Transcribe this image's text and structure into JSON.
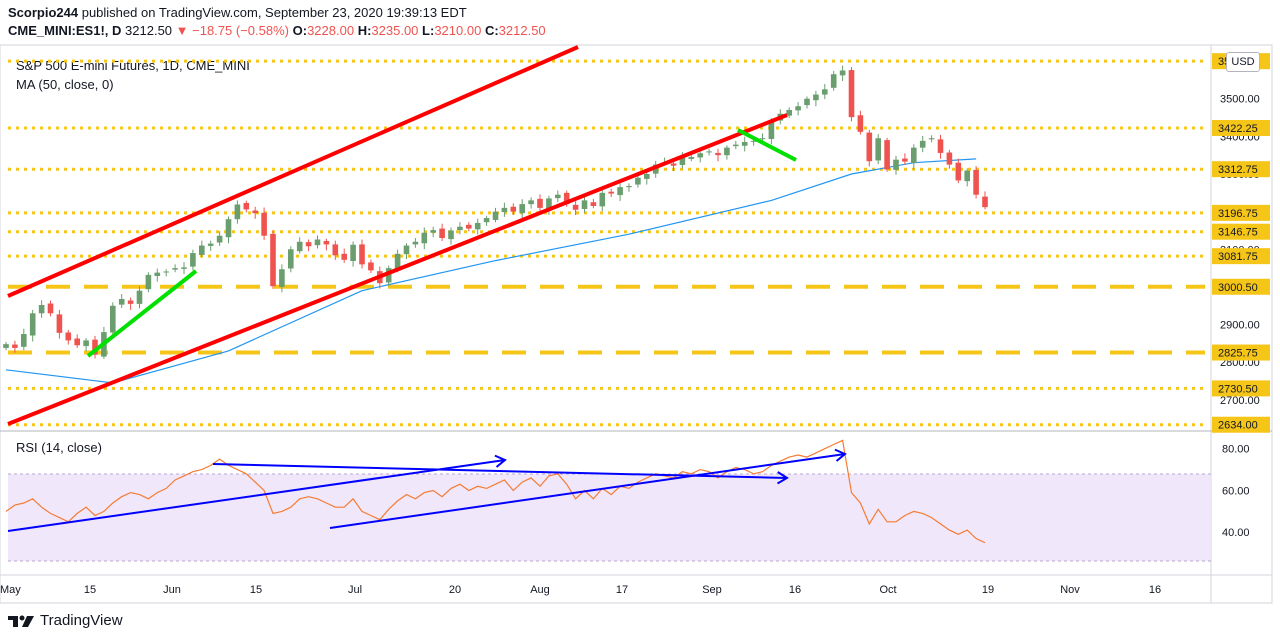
{
  "header": {
    "author": "Scorpio244",
    "published_text": "published on TradingView.com, September 23, 2020 19:39:13 EDT",
    "symbol": "CME_MINI:ES1!, D",
    "last": "3212.50",
    "change": "▼ −18.75 (−0.58%)",
    "o_label": "O:",
    "o_val": "3228.00",
    "h_label": "H:",
    "h_val": "3235.00",
    "l_label": "L:",
    "l_val": "3210.00",
    "c_label": "C:",
    "c_val": "3212.50"
  },
  "currency": "USD",
  "footer": {
    "brand": "TradingView"
  },
  "colors": {
    "up": "#4caf50",
    "up_body": "#6a9e6e",
    "down": "#ef5350",
    "ma": "#2196f3",
    "rsi": "#f57c33",
    "channel": "#ff0000",
    "level": "#f5c518",
    "trend_green": "#00e000",
    "trend_blue": "#0000ff"
  },
  "chart_data": [
    {
      "type": "candlestick",
      "title": "S&P 500 E-mini Futures, 1D, CME_MINI",
      "indicator_label": "MA (50, close, 0)",
      "ylim": [
        2620,
        3640
      ],
      "y_ticks": [
        2700,
        2800,
        2900,
        3000,
        3100,
        3200,
        3300,
        3400,
        3500
      ],
      "x_ticks": [
        "May",
        "15",
        "Jun",
        "15",
        "Jul",
        "20",
        "Aug",
        "17",
        "Sep",
        "16",
        "Oct",
        "19",
        "Nov",
        "16"
      ],
      "level_labels": [
        3599.75,
        3422.25,
        3312.75,
        3196.75,
        3146.75,
        3081.75,
        3000.5,
        2825.75,
        2730.5,
        2634.0
      ],
      "close": [
        2848,
        2838,
        2875,
        2930,
        2952,
        2930,
        2878,
        2858,
        2845,
        2858,
        2820,
        2880,
        2950,
        2968,
        2955,
        2990,
        3032,
        3038,
        3041,
        3050,
        3052,
        3090,
        3110,
        3115,
        3136,
        3180,
        3219,
        3206,
        3196,
        3136,
        3002,
        3047,
        3100,
        3120,
        3108,
        3126,
        3113,
        3084,
        3072,
        3112,
        3060,
        3044,
        3010,
        3050,
        3088,
        3110,
        3120,
        3144,
        3151,
        3130,
        3150,
        3160,
        3155,
        3170,
        3183,
        3200,
        3210,
        3200,
        3220,
        3230,
        3210,
        3235,
        3245,
        3220,
        3205,
        3230,
        3215,
        3250,
        3248,
        3265,
        3268,
        3290,
        3300,
        3325,
        3330,
        3322,
        3345,
        3345,
        3355,
        3360,
        3350,
        3370,
        3378,
        3385,
        3388,
        3395,
        3440,
        3460,
        3470,
        3480,
        3500,
        3511,
        3525,
        3565,
        3575,
        3451,
        3412,
        3334,
        3395,
        3312,
        3338,
        3333,
        3370,
        3388,
        3395,
        3356,
        3325,
        3283,
        3309,
        3245,
        3212
      ],
      "ma50_anchor": [
        [
          0,
          2780
        ],
        [
          12,
          2745
        ],
        [
          25,
          2830
        ],
        [
          40,
          2990
        ],
        [
          55,
          3070
        ],
        [
          70,
          3140
        ],
        [
          86,
          3230
        ],
        [
          95,
          3300
        ],
        [
          102,
          3330
        ],
        [
          109,
          3340
        ]
      ],
      "rsi": {
        "label": "RSI (14, close)",
        "ylim": [
          20,
          88
        ],
        "ticks": [
          80,
          60,
          40
        ],
        "band": [
          30,
          70
        ],
        "values": [
          50,
          53,
          54,
          56,
          52,
          49,
          47,
          45,
          49,
          52,
          48,
          50,
          54,
          57,
          59,
          58,
          56,
          59,
          61,
          65,
          67,
          69,
          70,
          72,
          75,
          72,
          70,
          68,
          64,
          60,
          49,
          50,
          52,
          56,
          57,
          56,
          54,
          52,
          52,
          56,
          50,
          48,
          46,
          51,
          55,
          58,
          56,
          59,
          60,
          57,
          61,
          63,
          60,
          62,
          61,
          63,
          65,
          60,
          64,
          66,
          62,
          67,
          68,
          63,
          56,
          60,
          56,
          61,
          58,
          62,
          61,
          64,
          66,
          68,
          67,
          66,
          69,
          68,
          70,
          69,
          66,
          69,
          71,
          70,
          68,
          69,
          72,
          74,
          76,
          77,
          76,
          78,
          80,
          82,
          84,
          59,
          54,
          44,
          51,
          45,
          45,
          48,
          50,
          49,
          47,
          44,
          41,
          39,
          41,
          37,
          35
        ]
      }
    }
  ]
}
